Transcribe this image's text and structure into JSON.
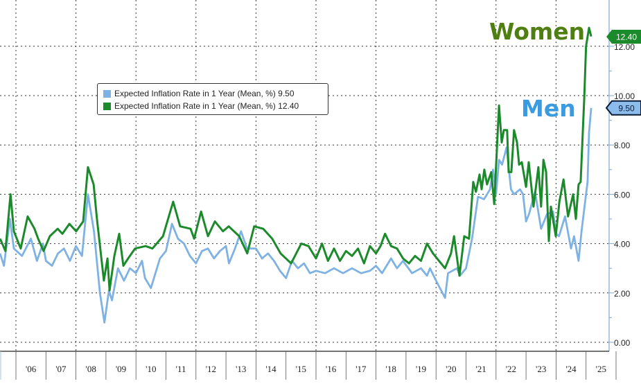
{
  "chart_data": {
    "type": "line",
    "title": "",
    "xlabel": "",
    "ylabel": "",
    "ylim": [
      0,
      13
    ],
    "xlim": [
      2005.45,
      2025.5
    ],
    "yticks": [
      "0.00",
      "2.00",
      "4.00",
      "6.00",
      "8.00",
      "10.00",
      "12.00"
    ],
    "xtick_labels": [
      "'06",
      "'07",
      "'08",
      "'09",
      "'10",
      "'11",
      "'12",
      "'13",
      "'14",
      "'15",
      "'16",
      "'17",
      "'18",
      "'19",
      "'20",
      "'21",
      "'22",
      "'23",
      "'24",
      "'25"
    ],
    "grid": true,
    "legend_position": "top-left",
    "annotations": {
      "women": "Women",
      "men": "Men"
    },
    "series": [
      {
        "name": "Expected Inflation Rate in 1 Year (Mean, %)",
        "legend_value": "9.50",
        "last_label": "9.50",
        "group": "Men",
        "color": "#7eb2e4",
        "x": [
          2005.47,
          2005.6,
          2005.8,
          2005.93,
          2006.2,
          2006.5,
          2006.7,
          2006.9,
          2007.0,
          2007.2,
          2007.4,
          2007.6,
          2007.8,
          2008.0,
          2008.2,
          2008.4,
          2008.6,
          2008.8,
          2008.95,
          2009.1,
          2009.2,
          2009.4,
          2009.6,
          2009.8,
          2010.0,
          2010.2,
          2010.3,
          2010.5,
          2010.8,
          2011.0,
          2011.2,
          2011.4,
          2011.6,
          2011.8,
          2012.0,
          2012.2,
          2012.4,
          2012.6,
          2012.8,
          2013.0,
          2013.1,
          2013.3,
          2013.5,
          2013.7,
          2013.85,
          2014.0,
          2014.2,
          2014.4,
          2014.6,
          2014.8,
          2015.0,
          2015.2,
          2015.4,
          2015.6,
          2015.8,
          2016.0,
          2016.3,
          2016.6,
          2016.9,
          2017.2,
          2017.5,
          2017.8,
          2018.0,
          2018.2,
          2018.5,
          2018.7,
          2018.9,
          2019.2,
          2019.5,
          2019.7,
          2019.8,
          2020.0,
          2020.3,
          2020.4,
          2020.7,
          2020.8,
          2021.0,
          2021.2,
          2021.4,
          2021.6,
          2021.8,
          2021.9,
          2022.0,
          2022.1,
          2022.2,
          2022.35,
          2022.5,
          2022.6,
          2022.8,
          2022.9,
          2023.0,
          2023.1,
          2023.3,
          2023.5,
          2023.7,
          2023.9,
          2024.0,
          2024.1,
          2024.3,
          2024.5,
          2024.6,
          2024.75,
          2024.85,
          2024.95,
          2025.05,
          2025.1,
          2025.17
        ],
        "y": [
          3.6,
          3.1,
          5.0,
          3.8,
          3.5,
          4.2,
          3.3,
          4.0,
          3.3,
          3.1,
          3.6,
          3.8,
          3.3,
          3.9,
          3.5,
          6.0,
          4.5,
          2.0,
          0.8,
          2.1,
          1.7,
          3.0,
          2.5,
          3.0,
          2.8,
          3.3,
          2.6,
          2.2,
          3.4,
          3.7,
          4.8,
          4.2,
          4.0,
          3.5,
          3.2,
          3.7,
          3.8,
          3.4,
          3.7,
          3.9,
          3.2,
          3.8,
          4.5,
          3.8,
          3.8,
          3.8,
          3.4,
          3.6,
          3.3,
          2.9,
          2.6,
          3.3,
          3.0,
          3.2,
          2.8,
          2.9,
          2.8,
          3.0,
          2.8,
          3.0,
          2.8,
          2.9,
          3.1,
          2.8,
          3.4,
          3.0,
          3.3,
          2.8,
          3.0,
          2.7,
          3.0,
          2.5,
          1.8,
          2.8,
          3.0,
          2.7,
          3.0,
          4.2,
          5.9,
          5.8,
          6.2,
          7.0,
          6.0,
          7.4,
          7.2,
          7.9,
          6.2,
          6.0,
          6.2,
          6.0,
          4.9,
          5.2,
          6.1,
          4.6,
          5.2,
          5.3,
          4.4,
          4.3,
          5.1,
          3.8,
          4.3,
          3.3,
          4.5,
          5.5,
          6.5,
          8.5,
          9.5
        ]
      },
      {
        "name": "Expected Inflation Rate in 1 Year (Mean, %)",
        "legend_value": "12.40",
        "last_label": "12.40",
        "group": "Women",
        "color": "#1b8a2b",
        "x": [
          2005.47,
          2005.65,
          2005.82,
          2005.93,
          2006.16,
          2006.39,
          2006.62,
          2006.74,
          2006.92,
          2007.13,
          2007.39,
          2007.55,
          2007.78,
          2008.01,
          2008.24,
          2008.4,
          2008.59,
          2008.7,
          2008.93,
          2009.05,
          2009.12,
          2009.28,
          2009.44,
          2009.58,
          2009.74,
          2009.97,
          2010.32,
          2010.55,
          2010.9,
          2011.24,
          2011.47,
          2011.82,
          2011.94,
          2012.17,
          2012.4,
          2012.63,
          2012.9,
          2013.09,
          2013.44,
          2013.71,
          2013.94,
          2014.24,
          2014.54,
          2014.82,
          2015.17,
          2015.51,
          2015.75,
          2016.0,
          2016.2,
          2016.4,
          2016.6,
          2016.8,
          2017.0,
          2017.2,
          2017.4,
          2017.6,
          2017.8,
          2018.0,
          2018.15,
          2018.3,
          2018.5,
          2018.7,
          2018.9,
          2019.1,
          2019.3,
          2019.5,
          2019.7,
          2019.9,
          2020.1,
          2020.3,
          2020.5,
          2020.6,
          2020.78,
          2020.94,
          2021.1,
          2021.24,
          2021.33,
          2021.45,
          2021.52,
          2021.61,
          2021.7,
          2021.84,
          2021.94,
          2022.1,
          2022.19,
          2022.26,
          2022.37,
          2022.42,
          2022.51,
          2022.6,
          2022.7,
          2022.77,
          2022.86,
          2023.0,
          2023.09,
          2023.25,
          2023.41,
          2023.5,
          2023.58,
          2023.67,
          2023.76,
          2023.83,
          2023.99,
          2024.11,
          2024.25,
          2024.4,
          2024.57,
          2024.66,
          2024.75,
          2024.82,
          2024.94,
          2025.0,
          2025.1,
          2025.17
        ],
        "y": [
          4.2,
          3.7,
          6.0,
          4.5,
          3.8,
          5.1,
          4.6,
          4.2,
          3.7,
          4.3,
          4.6,
          4.4,
          4.8,
          4.5,
          4.9,
          7.1,
          6.4,
          5.0,
          2.5,
          3.4,
          2.1,
          3.5,
          4.4,
          3.1,
          3.4,
          3.8,
          3.9,
          3.8,
          4.3,
          5.7,
          4.7,
          4.6,
          4.2,
          5.3,
          4.3,
          4.9,
          4.5,
          4.7,
          4.3,
          3.6,
          4.7,
          4.6,
          4.2,
          3.6,
          3.2,
          4.0,
          3.9,
          3.4,
          4.0,
          3.3,
          3.8,
          3.3,
          3.7,
          3.5,
          3.8,
          3.2,
          3.9,
          3.6,
          3.9,
          4.4,
          3.9,
          3.8,
          3.4,
          3.2,
          3.5,
          3.3,
          4.0,
          3.6,
          3.3,
          3.0,
          3.6,
          4.3,
          2.7,
          4.3,
          4.2,
          6.5,
          6.1,
          6.8,
          6.2,
          7.0,
          6.4,
          6.9,
          5.6,
          9.6,
          8.1,
          8.6,
          8.6,
          6.9,
          6.9,
          8.6,
          8.1,
          7.2,
          7.3,
          6.3,
          7.3,
          5.5,
          7.1,
          5.5,
          7.4,
          6.9,
          4.1,
          5.5,
          4.3,
          5.7,
          6.6,
          5.1,
          6.0,
          5.0,
          6.4,
          6.5,
          9.9,
          12.0,
          12.75,
          12.4
        ]
      }
    ]
  }
}
